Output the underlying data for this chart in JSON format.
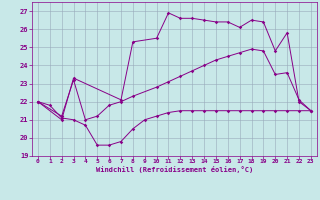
{
  "xlabel": "Windchill (Refroidissement éolien,°C)",
  "xlim": [
    -0.5,
    23.5
  ],
  "ylim": [
    19,
    27.5
  ],
  "yticks": [
    19,
    20,
    21,
    22,
    23,
    24,
    25,
    26,
    27
  ],
  "xticks": [
    0,
    1,
    2,
    3,
    4,
    5,
    6,
    7,
    8,
    9,
    10,
    11,
    12,
    13,
    14,
    15,
    16,
    17,
    18,
    19,
    20,
    21,
    22,
    23
  ],
  "bg_color": "#c8e8e8",
  "line_color": "#880088",
  "grid_color": "#99aabb",
  "line1_x": [
    0,
    1,
    2,
    3,
    4,
    5,
    6,
    7,
    8,
    9,
    10,
    11,
    12,
    13,
    14,
    15,
    16,
    17,
    18,
    19,
    20,
    21,
    22,
    23
  ],
  "line1_y": [
    22.0,
    21.8,
    21.1,
    21.0,
    20.7,
    19.6,
    19.6,
    19.8,
    20.5,
    21.0,
    21.2,
    21.4,
    21.5,
    21.5,
    21.5,
    21.5,
    21.5,
    21.5,
    21.5,
    21.5,
    21.5,
    21.5,
    21.5,
    21.5
  ],
  "line2_x": [
    0,
    2,
    3,
    4,
    5,
    6,
    7,
    8,
    10,
    11,
    12,
    13,
    14,
    15,
    16,
    17,
    18,
    19,
    20,
    21,
    22,
    23
  ],
  "line2_y": [
    22.0,
    21.2,
    23.2,
    21.0,
    21.2,
    21.8,
    22.0,
    22.3,
    22.8,
    23.1,
    23.4,
    23.7,
    24.0,
    24.3,
    24.5,
    24.7,
    24.9,
    24.8,
    23.5,
    23.6,
    22.1,
    21.5
  ],
  "line3_x": [
    0,
    2,
    3,
    7,
    8,
    10,
    11,
    12,
    13,
    14,
    15,
    16,
    17,
    18,
    19,
    20,
    21,
    22,
    23
  ],
  "line3_y": [
    22.0,
    21.0,
    23.3,
    22.1,
    25.3,
    25.5,
    26.9,
    26.6,
    26.6,
    26.5,
    26.4,
    26.4,
    26.1,
    26.5,
    26.4,
    24.8,
    25.8,
    22.0,
    21.5
  ]
}
